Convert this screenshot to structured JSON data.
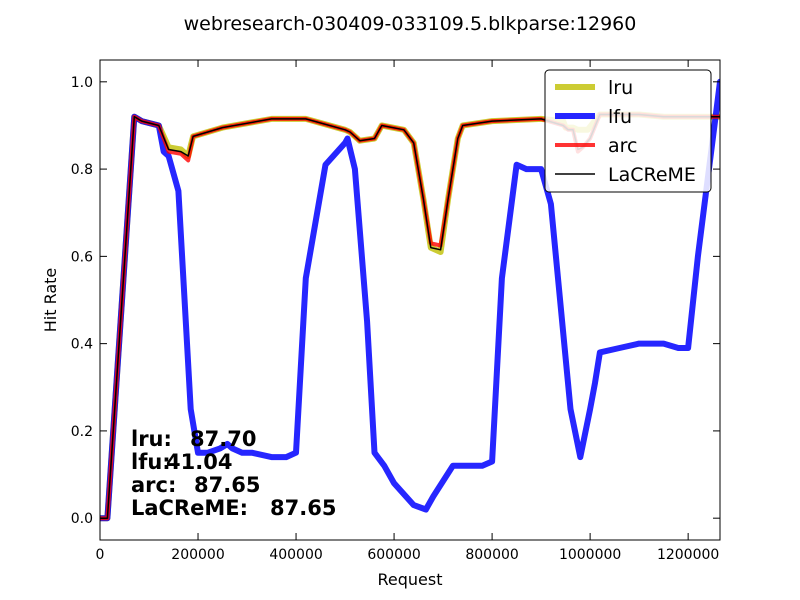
{
  "chart_data": {
    "type": "line",
    "title": "webresearch-030409-033109.5.blkparse:12960",
    "xlabel": "Request",
    "ylabel": "Hit Rate",
    "xlim": [
      0,
      1265000
    ],
    "ylim": [
      -0.05,
      1.05
    ],
    "xticks": [
      0,
      200000,
      400000,
      600000,
      800000,
      1000000,
      1200000
    ],
    "xtick_labels": [
      "0",
      "200000",
      "400000",
      "600000",
      "800000",
      "1000000",
      "1200000"
    ],
    "yticks": [
      0.0,
      0.2,
      0.4,
      0.6,
      0.8,
      1.0
    ],
    "ytick_labels": [
      "0.0",
      "0.2",
      "0.4",
      "0.6",
      "0.8",
      "1.0"
    ],
    "grid": false,
    "legend_position": "top-right",
    "series": [
      {
        "name": "lru",
        "color": "#bfbf00",
        "width": 6,
        "opacity": 0.8,
        "x": [
          0,
          15000,
          70000,
          85000,
          120000,
          140000,
          165000,
          180000,
          190000,
          250000,
          350000,
          420000,
          500000,
          510000,
          530000,
          560000,
          575000,
          620000,
          640000,
          660000,
          675000,
          695000,
          710000,
          730000,
          740000,
          800000,
          900000,
          945000,
          950000,
          965000,
          975000,
          995000,
          1020000,
          1100000,
          1150000,
          1200000,
          1265000
        ],
        "y": [
          0.0,
          0.0,
          0.92,
          0.91,
          0.9,
          0.85,
          0.845,
          0.83,
          0.875,
          0.895,
          0.915,
          0.915,
          0.89,
          0.885,
          0.865,
          0.87,
          0.9,
          0.89,
          0.86,
          0.73,
          0.62,
          0.61,
          0.73,
          0.87,
          0.9,
          0.91,
          0.915,
          0.91,
          0.895,
          0.895,
          0.89,
          0.89,
          0.925,
          0.925,
          0.92,
          0.92,
          0.92
        ]
      },
      {
        "name": "lfu",
        "color": "#0000ff",
        "width": 6,
        "opacity": 0.85,
        "x": [
          0,
          15000,
          70000,
          85000,
          120000,
          130000,
          140000,
          160000,
          175000,
          185000,
          200000,
          220000,
          245000,
          260000,
          270000,
          290000,
          310000,
          350000,
          380000,
          400000,
          420000,
          460000,
          500000,
          505000,
          520000,
          545000,
          560000,
          580000,
          600000,
          640000,
          665000,
          680000,
          720000,
          780000,
          800000,
          820000,
          850000,
          870000,
          900000,
          920000,
          960000,
          980000,
          1000000,
          1010000,
          1020000,
          1060000,
          1100000,
          1150000,
          1180000,
          1200000,
          1220000,
          1265000
        ],
        "y": [
          0.0,
          0.0,
          0.92,
          0.91,
          0.9,
          0.84,
          0.83,
          0.75,
          0.45,
          0.25,
          0.15,
          0.15,
          0.16,
          0.17,
          0.16,
          0.15,
          0.15,
          0.14,
          0.14,
          0.15,
          0.55,
          0.81,
          0.86,
          0.87,
          0.8,
          0.45,
          0.15,
          0.12,
          0.08,
          0.03,
          0.02,
          0.05,
          0.12,
          0.12,
          0.13,
          0.55,
          0.81,
          0.8,
          0.8,
          0.72,
          0.25,
          0.14,
          0.25,
          0.31,
          0.38,
          0.39,
          0.4,
          0.4,
          0.39,
          0.39,
          0.6,
          1.0
        ]
      },
      {
        "name": "arc",
        "color": "#ff0000",
        "width": 4,
        "opacity": 0.8,
        "x": [
          0,
          15000,
          70000,
          85000,
          120000,
          140000,
          165000,
          180000,
          190000,
          250000,
          350000,
          420000,
          500000,
          510000,
          530000,
          560000,
          575000,
          620000,
          640000,
          660000,
          675000,
          695000,
          710000,
          730000,
          740000,
          800000,
          900000,
          945000,
          955000,
          965000,
          975000,
          985000,
          1000000,
          1020000,
          1100000,
          1150000,
          1200000,
          1265000
        ],
        "y": [
          0.0,
          0.0,
          0.92,
          0.91,
          0.9,
          0.84,
          0.835,
          0.82,
          0.875,
          0.895,
          0.915,
          0.915,
          0.89,
          0.885,
          0.865,
          0.87,
          0.9,
          0.89,
          0.86,
          0.73,
          0.63,
          0.625,
          0.73,
          0.87,
          0.9,
          0.91,
          0.915,
          0.9,
          0.89,
          0.89,
          0.84,
          0.85,
          0.87,
          0.925,
          0.925,
          0.92,
          0.92,
          0.92
        ]
      },
      {
        "name": "LaCReME",
        "color": "#000000",
        "width": 1.5,
        "opacity": 1,
        "x": [
          0,
          15000,
          70000,
          85000,
          120000,
          140000,
          165000,
          180000,
          190000,
          250000,
          350000,
          420000,
          500000,
          510000,
          530000,
          560000,
          575000,
          620000,
          640000,
          660000,
          675000,
          695000,
          710000,
          730000,
          740000,
          800000,
          900000,
          945000,
          955000,
          965000,
          975000,
          985000,
          1000000,
          1020000,
          1100000,
          1150000,
          1200000,
          1265000
        ],
        "y": [
          0.0,
          0.0,
          0.92,
          0.91,
          0.9,
          0.845,
          0.84,
          0.83,
          0.875,
          0.895,
          0.915,
          0.915,
          0.89,
          0.885,
          0.865,
          0.87,
          0.9,
          0.89,
          0.86,
          0.73,
          0.62,
          0.615,
          0.73,
          0.87,
          0.9,
          0.91,
          0.915,
          0.9,
          0.89,
          0.89,
          0.845,
          0.85,
          0.87,
          0.925,
          0.925,
          0.92,
          0.92,
          0.92
        ]
      }
    ],
    "annotations": [
      {
        "label": "lru:",
        "value": "87.70"
      },
      {
        "label": "lfu:",
        "value": "41.04"
      },
      {
        "label": "arc:",
        "value": "87.65"
      },
      {
        "label": "LaCReME:",
        "value": "87.65"
      }
    ]
  }
}
